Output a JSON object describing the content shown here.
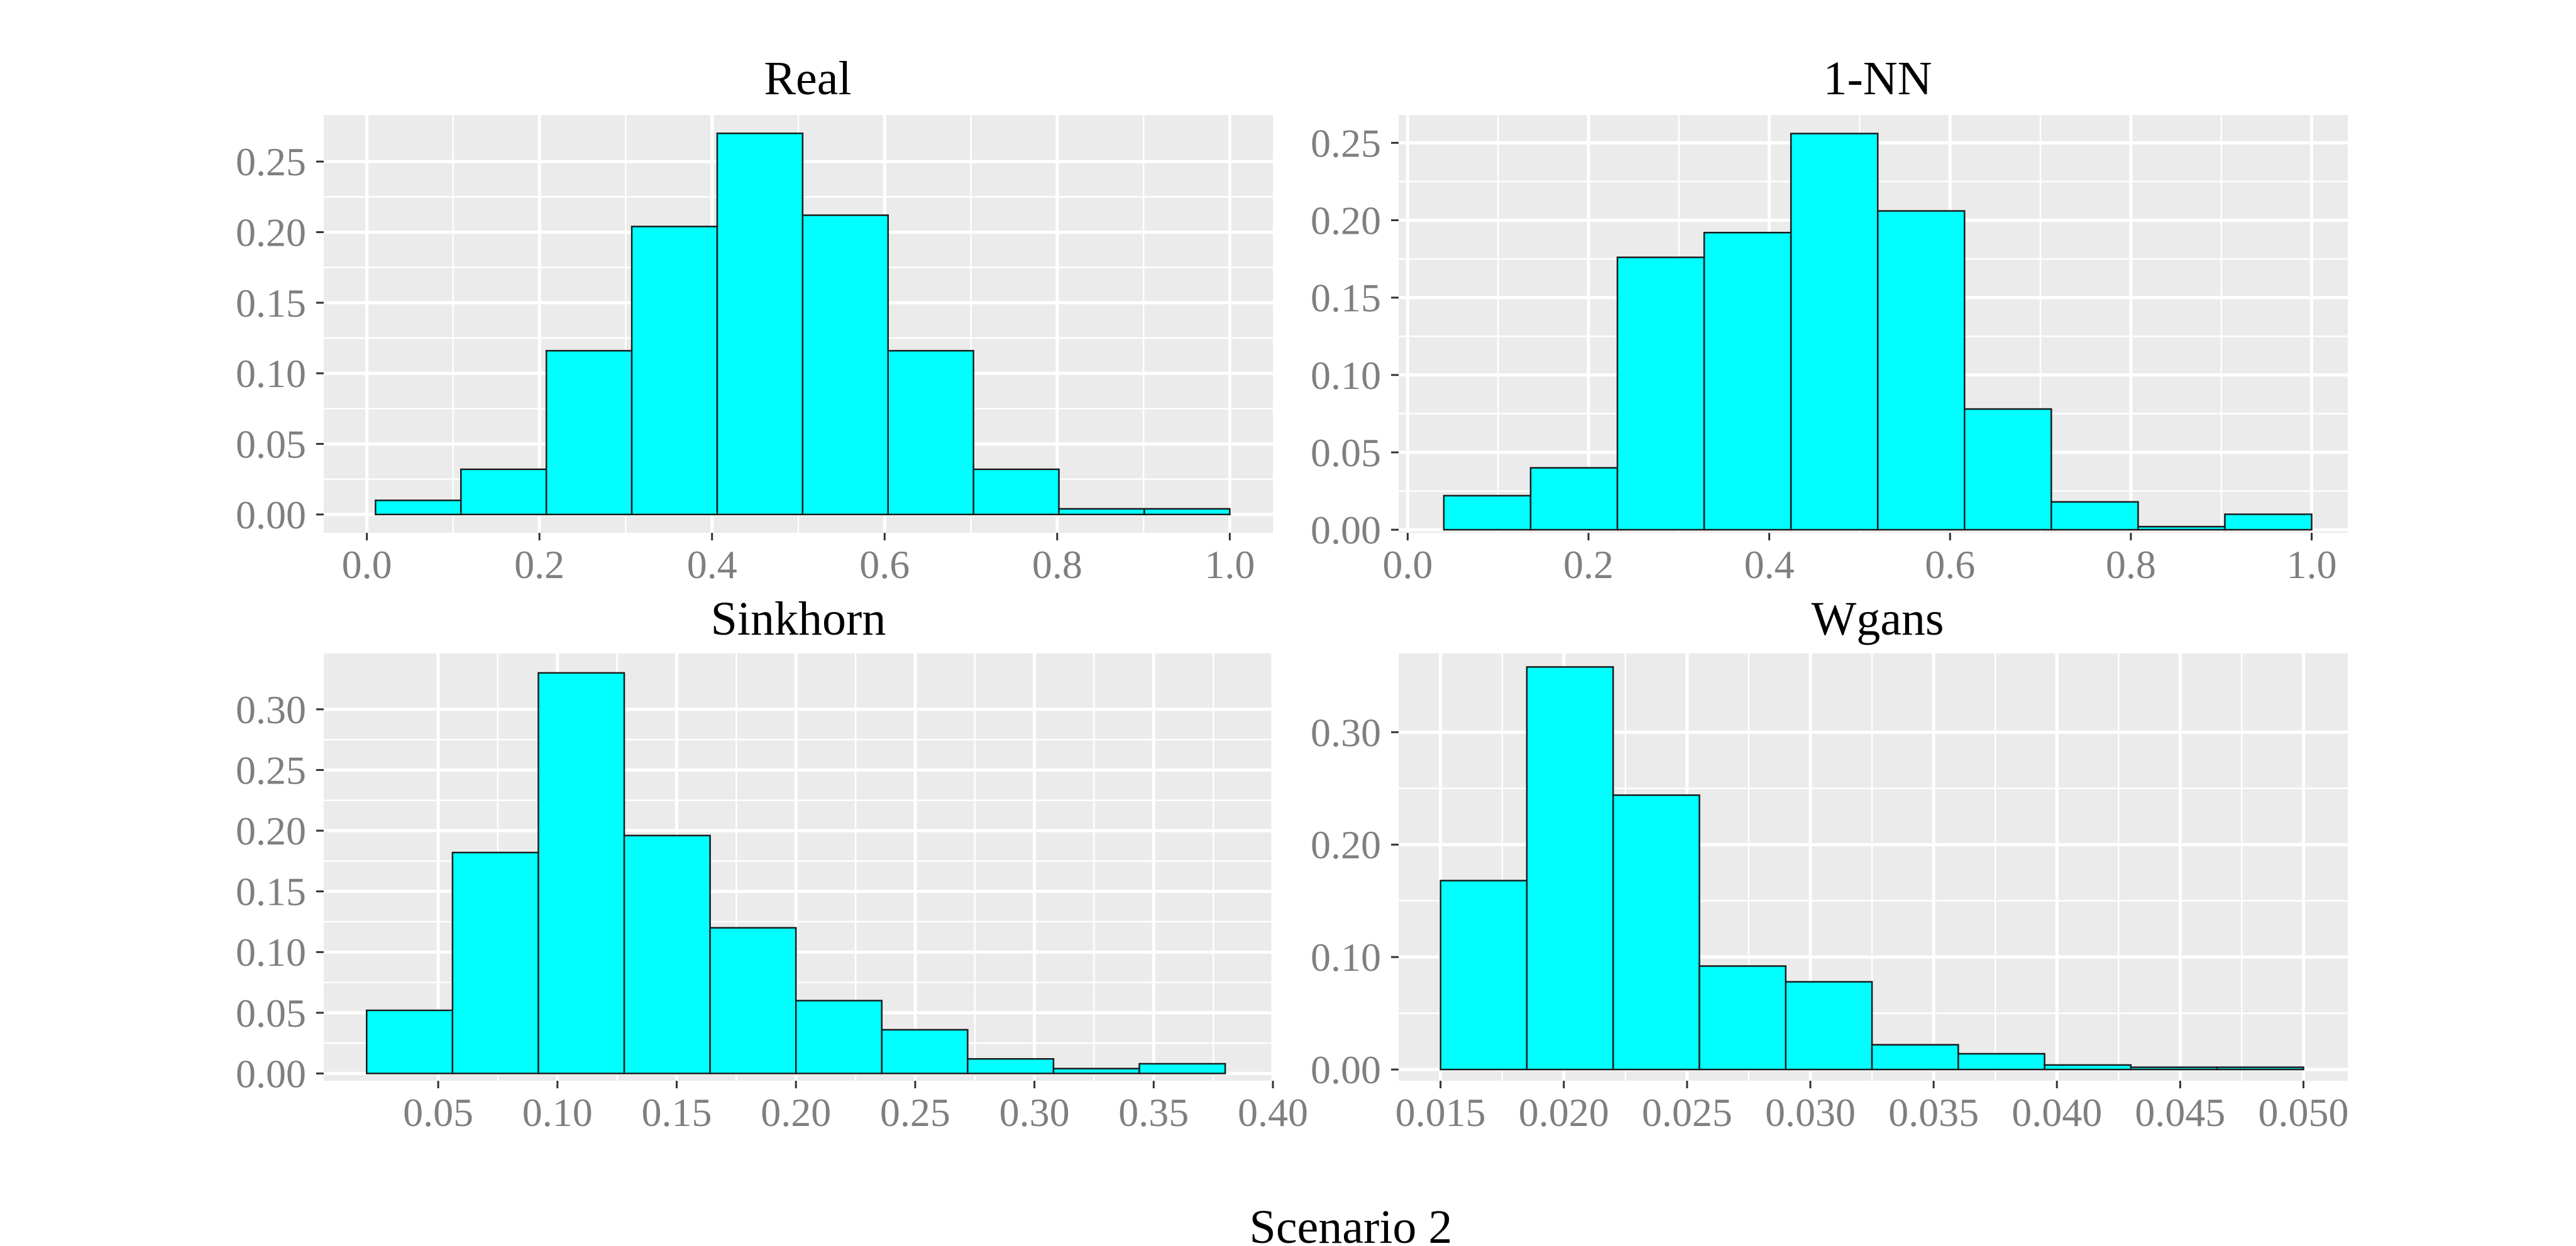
{
  "caption": "Scenario 2",
  "colors": {
    "bar_fill": "#00FFFF",
    "bar_stroke": "#1a1a1a",
    "panel_bg": "#EBEBEB",
    "grid": "#FFFFFF",
    "tick_text": "#7F7F7F"
  },
  "chart_data": [
    {
      "type": "bar",
      "title": "Real",
      "xlabel": "",
      "ylabel": "",
      "bin_edges": [
        0.01,
        0.109,
        0.208,
        0.307,
        0.406,
        0.505,
        0.604,
        0.703,
        0.802,
        0.901,
        1.0
      ],
      "values": [
        0.01,
        0.032,
        0.116,
        0.204,
        0.27,
        0.212,
        0.116,
        0.032,
        0.004,
        0.004
      ],
      "xlim": [
        -0.05,
        1.05
      ],
      "ylim": [
        -0.013,
        0.283
      ],
      "xticks": [
        0.0,
        0.2,
        0.4,
        0.6,
        0.8,
        1.0
      ],
      "xtick_labels": [
        "0.0",
        "0.2",
        "0.4",
        "0.6",
        "0.8",
        "1.0"
      ],
      "yticks": [
        0.0,
        0.05,
        0.1,
        0.15,
        0.2,
        0.25
      ],
      "ytick_labels": [
        "0.00",
        "0.05",
        "0.10",
        "0.15",
        "0.20",
        "0.25"
      ]
    },
    {
      "type": "bar",
      "title": "1-NN",
      "xlabel": "",
      "ylabel": "",
      "bin_edges": [
        0.04,
        0.136,
        0.232,
        0.328,
        0.424,
        0.52,
        0.616,
        0.712,
        0.808,
        0.904,
        1.0
      ],
      "values": [
        0.022,
        0.04,
        0.176,
        0.192,
        0.256,
        0.206,
        0.078,
        0.018,
        0.002,
        0.01
      ],
      "xlim": [
        -0.01,
        1.04
      ],
      "ylim": [
        -0.002,
        0.268
      ],
      "xticks": [
        0.0,
        0.2,
        0.4,
        0.6,
        0.8,
        1.0
      ],
      "xtick_labels": [
        "0.0",
        "0.2",
        "0.4",
        "0.6",
        "0.8",
        "1.0"
      ],
      "yticks": [
        0.0,
        0.05,
        0.1,
        0.15,
        0.2,
        0.25
      ],
      "ytick_labels": [
        "0.00",
        "0.05",
        "0.10",
        "0.15",
        "0.20",
        "0.25"
      ]
    },
    {
      "type": "bar",
      "title": "Sinkhorn",
      "xlabel": "",
      "ylabel": "",
      "bin_edges": [
        0.02,
        0.056,
        0.092,
        0.128,
        0.164,
        0.2,
        0.236,
        0.272,
        0.308,
        0.344,
        0.38
      ],
      "values": [
        0.052,
        0.182,
        0.33,
        0.196,
        0.12,
        0.06,
        0.036,
        0.012,
        0.004,
        0.008
      ],
      "xlim": [
        0.002,
        0.4
      ],
      "ylim": [
        -0.006,
        0.346
      ],
      "xticks": [
        0.05,
        0.1,
        0.15,
        0.2,
        0.25,
        0.3,
        0.35,
        0.4
      ],
      "xtick_labels": [
        "0.05",
        "0.10",
        "0.15",
        "0.20",
        "0.25",
        "0.30",
        "0.35",
        "0.40"
      ],
      "yticks": [
        0.0,
        0.05,
        0.1,
        0.15,
        0.2,
        0.25,
        0.3
      ],
      "ytick_labels": [
        "0.00",
        "0.05",
        "0.10",
        "0.15",
        "0.20",
        "0.25",
        "0.30"
      ]
    },
    {
      "type": "bar",
      "title": "Wgans",
      "xlabel": "",
      "ylabel": "",
      "bin_edges": [
        0.015,
        0.0185,
        0.022,
        0.0255,
        0.029,
        0.0325,
        0.036,
        0.0395,
        0.043,
        0.0465,
        0.05
      ],
      "values": [
        0.168,
        0.358,
        0.244,
        0.092,
        0.078,
        0.022,
        0.014,
        0.004,
        0.002,
        0.002
      ],
      "xlim": [
        0.0133,
        0.0518
      ],
      "ylim": [
        -0.01,
        0.37
      ],
      "xticks": [
        0.015,
        0.02,
        0.025,
        0.03,
        0.035,
        0.04,
        0.045,
        0.05
      ],
      "xtick_labels": [
        "0.015",
        "0.020",
        "0.025",
        "0.030",
        "0.035",
        "0.040",
        "0.045",
        "0.050"
      ],
      "yticks": [
        0.0,
        0.1,
        0.2,
        0.3
      ],
      "ytick_labels": [
        "0.00",
        "0.10",
        "0.20",
        "0.30"
      ]
    }
  ]
}
